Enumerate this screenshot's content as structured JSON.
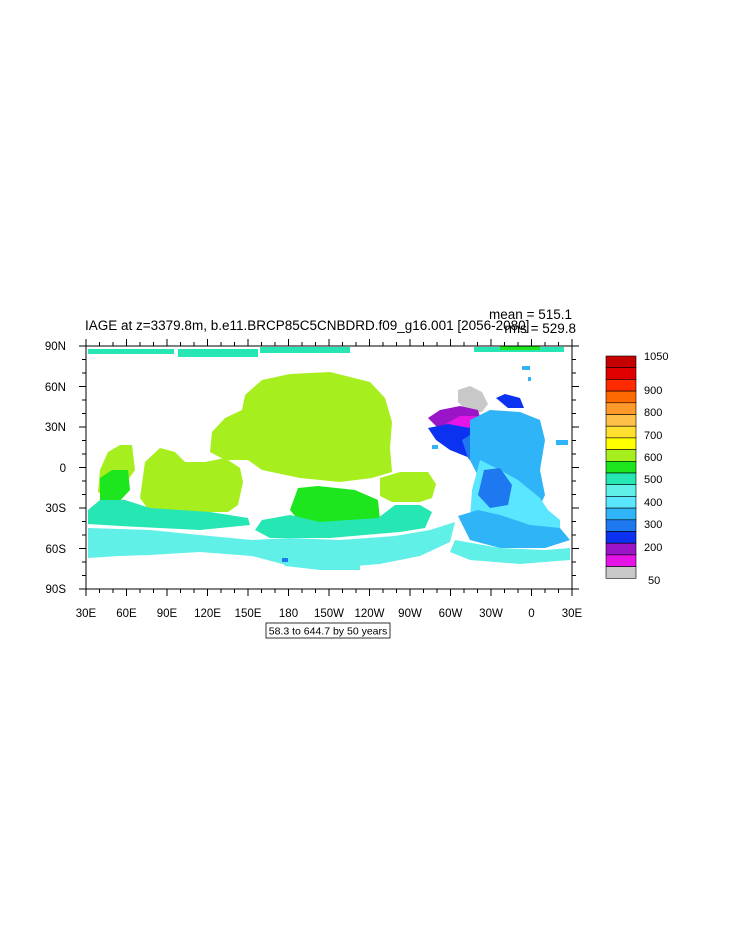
{
  "title": "IAGE at z=3379.8m, b.e11.BRCP85C5CNBDRD.f09_g16.001 [2056-2080]",
  "stats": {
    "mean": "mean = 515.1",
    "rms": "rms = 529.8"
  },
  "range_label": "58.3 to 644.7 by 50 years",
  "x_ticks": [
    "30E",
    "60E",
    "90E",
    "120E",
    "150E",
    "180",
    "150W",
    "120W",
    "90W",
    "60W",
    "30W",
    "0",
    "30E"
  ],
  "y_ticks": [
    "90N",
    "60N",
    "30N",
    "0",
    "30S",
    "60S",
    "90S"
  ],
  "colorbar": {
    "labels": [
      "1050",
      "900",
      "800",
      "700",
      "600",
      "500",
      "400",
      "300",
      "200",
      "50"
    ],
    "colors_top_to_bottom": [
      "#c40000",
      "#e10000",
      "#ff2a00",
      "#ff6a00",
      "#ff9a2a",
      "#ffc04a",
      "#ffe030",
      "#ffff00",
      "#a6ee1e",
      "#1ee61e",
      "#26e6b4",
      "#60f0e8",
      "#5ae6ff",
      "#30b4f8",
      "#1e78f0",
      "#0a32f0",
      "#9a14c8",
      "#e614e6",
      "#c8c8c8"
    ]
  },
  "colors": {
    "lime": "#a6ee1e",
    "green": "#1ee61e",
    "teal": "#26e6b4",
    "aqua": "#60f0e8",
    "cyan": "#5ae6ff",
    "sky": "#30b4f8",
    "blue": "#1e78f0",
    "deepblue": "#0a32f0",
    "purple": "#9a14c8",
    "magenta": "#e614e6",
    "gray": "#c8c8c8"
  }
}
